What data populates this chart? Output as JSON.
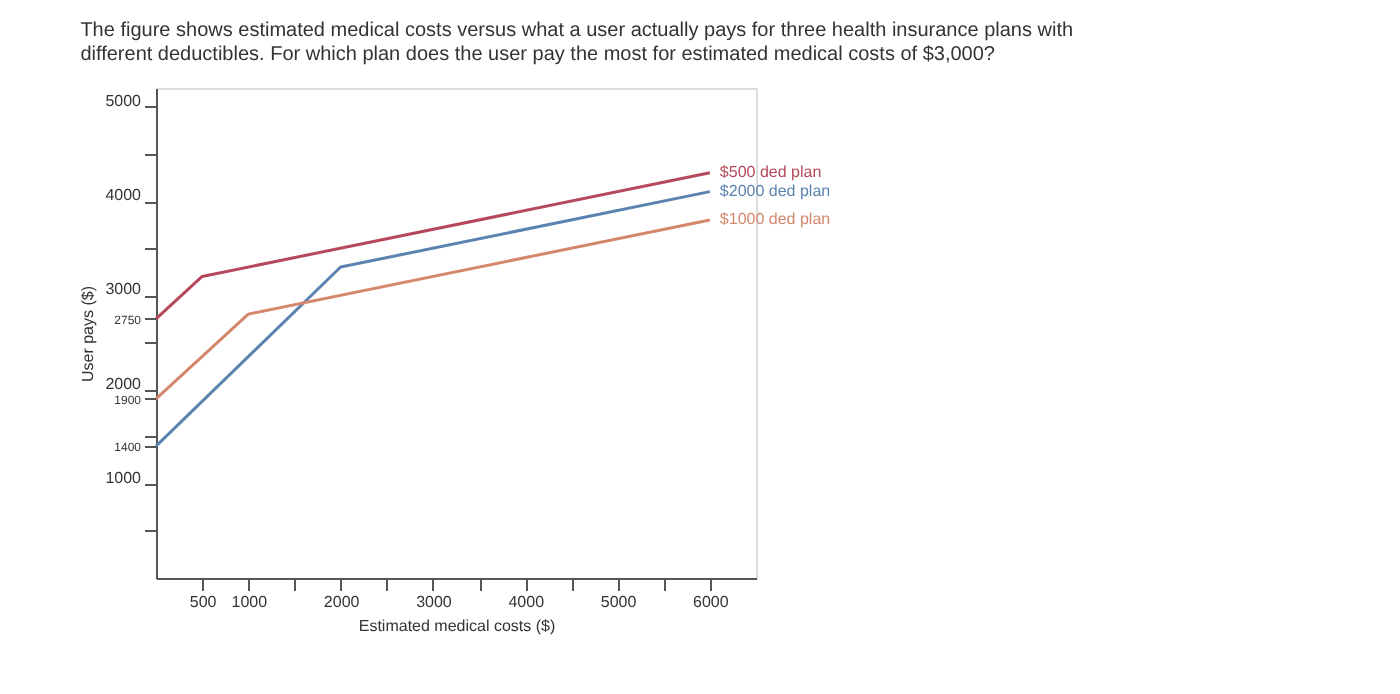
{
  "chart_data": {
    "type": "line",
    "title": "The figure shows estimated medical costs versus what a user actually pays for three health insurance plans with different deductibles. For which plan does the user pay the most for estimated medical costs of $3,000?",
    "xlabel": "Estimated medical costs ($)",
    "ylabel": "User pays ($)",
    "series": [
      {
        "name": "$500 ded plan",
        "color": "#b5495b",
        "x": [
          0,
          500,
          6000
        ],
        "values": [
          2750,
          3200,
          4300
        ]
      },
      {
        "name": "$2000 ded plan",
        "color": "#5b83b0",
        "x": [
          0,
          2000,
          6000
        ],
        "values": [
          1400,
          3300,
          4100
        ]
      },
      {
        "name": "$1000 ded plan",
        "color": "#d4876a",
        "x": [
          0,
          1000,
          6000
        ],
        "values": [
          1900,
          2800,
          3800
        ]
      }
    ],
    "xlim": [
      0,
      6500
    ],
    "ylim": [
      0,
      5200
    ],
    "xticks": [
      500,
      1000,
      {
        "value": 1500,
        "label": null
      },
      2000,
      {
        "value": 2500,
        "label": null
      },
      3000,
      {
        "value": 3500,
        "label": null
      },
      4000,
      {
        "value": 4500,
        "label": null
      },
      5000,
      {
        "value": 5500,
        "label": null
      },
      6000
    ],
    "yticks": [
      {
        "value": 500,
        "label": null
      },
      1000,
      1400,
      {
        "value": 1500,
        "label": null
      },
      1900,
      2000,
      {
        "value": 2500,
        "label": null
      },
      2750,
      3000,
      {
        "value": 3500,
        "label": null
      },
      4000,
      {
        "value": 4500,
        "label": null
      },
      5000
    ],
    "grid": false,
    "marker": "none",
    "line_style": "solid"
  }
}
